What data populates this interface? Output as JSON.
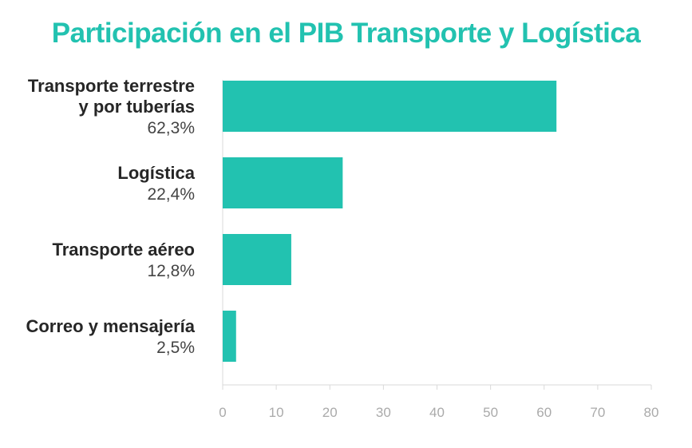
{
  "chart_data": {
    "type": "bar",
    "orientation": "horizontal",
    "title": "Participación en el PIB Transporte y Logística",
    "categories": [
      [
        "Transporte terrestre",
        "y por tuberías"
      ],
      [
        "Logística"
      ],
      [
        "Transporte aéreo"
      ],
      [
        "Correo y mensajería"
      ]
    ],
    "value_labels": [
      "62,3%",
      "22,4%",
      "12,8%",
      "2,5%"
    ],
    "values": [
      62.3,
      22.4,
      12.8,
      2.5
    ],
    "xlim": [
      0,
      80
    ],
    "xticks": [
      0,
      10,
      20,
      30,
      40,
      50,
      60,
      70,
      80
    ],
    "bar_color": "#22c2b0",
    "grid": false,
    "xlabel": "",
    "ylabel": ""
  }
}
